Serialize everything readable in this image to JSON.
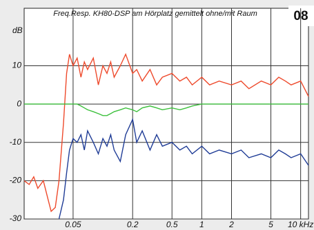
{
  "chart_data": {
    "type": "line",
    "title": "Freq.Resp. KH80-DSP am Hörplatz gemittelt ohne/mit Raum",
    "badge": "08",
    "ylabel": "dB",
    "log_x": true,
    "grid": true,
    "x": [
      0.016,
      0.018,
      0.02,
      0.022,
      0.025,
      0.028,
      0.03,
      0.033,
      0.036,
      0.04,
      0.043,
      0.046,
      0.05,
      0.055,
      0.06,
      0.065,
      0.07,
      0.08,
      0.09,
      0.1,
      0.11,
      0.12,
      0.13,
      0.15,
      0.17,
      0.2,
      0.22,
      0.25,
      0.3,
      0.35,
      0.4,
      0.5,
      0.6,
      0.7,
      0.8,
      1,
      1.2,
      1.5,
      2,
      2.5,
      3,
      4,
      5,
      6,
      7,
      8,
      10,
      12
    ],
    "series": [
      {
        "color": "#ee4a2c",
        "values": [
          -20,
          -21,
          -19,
          -22,
          -20,
          -25,
          -28,
          -27,
          -20,
          -5,
          8,
          13,
          10,
          12,
          7,
          11,
          9,
          12,
          5,
          10,
          8,
          11,
          7,
          10,
          13,
          8,
          9,
          6,
          9,
          5,
          7,
          8,
          6,
          7,
          5,
          7,
          5,
          6,
          5,
          6,
          4,
          6,
          5,
          7,
          6,
          5,
          6,
          2
        ]
      },
      {
        "color": "#3cc03c",
        "values": [
          0,
          0,
          0,
          0,
          0,
          0,
          0,
          0,
          0,
          0,
          0,
          0,
          0,
          0,
          -0.5,
          -1,
          -1.5,
          -2,
          -2.5,
          -3,
          -3,
          -2.5,
          -2,
          -1.5,
          -1,
          -1.5,
          -2,
          -1,
          -0.5,
          -1,
          -1.5,
          -1,
          -1.5,
          -1,
          -0.5,
          0,
          0,
          0,
          0,
          0,
          0,
          0,
          0,
          0,
          0,
          0,
          0,
          0
        ]
      },
      {
        "color": "#1f3c96",
        "values": [
          null,
          null,
          null,
          null,
          null,
          null,
          null,
          null,
          -30,
          -25,
          -18,
          -12,
          -9,
          -10,
          -8,
          -12,
          -7,
          -10,
          -13,
          -9,
          -11,
          -8,
          -12,
          -15,
          -8,
          -4,
          -10,
          -7,
          -12,
          -8,
          -11,
          -10,
          -12,
          -11,
          -13,
          -11,
          -13,
          -12,
          -13,
          -12,
          -14,
          -13,
          -14,
          -12,
          -13,
          -14,
          -13,
          -16
        ]
      }
    ],
    "xlim": [
      0.016,
      12
    ],
    "xticks": [
      0.05,
      0.2,
      0.5,
      1,
      2,
      5,
      {
        "value": 10,
        "label": "10 kHz"
      }
    ],
    "ylim": [
      -30,
      25
    ],
    "yticks": [
      -30,
      -20,
      -10,
      0,
      10
    ]
  }
}
